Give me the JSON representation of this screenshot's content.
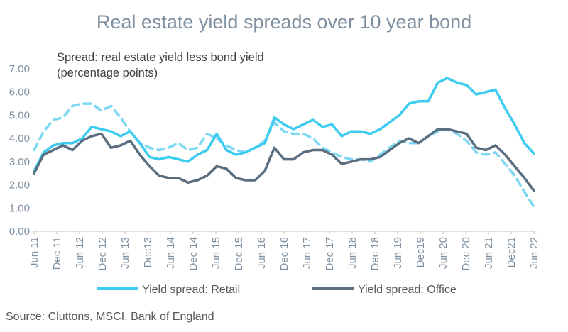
{
  "chart_data": {
    "type": "line",
    "title": "Real estate yield spreads over 10 year bond",
    "ylabel": "Spread: real estate yield less bond yield (percentage points)",
    "ylim": [
      0,
      7
    ],
    "yticks": [
      "0.00",
      "1.00",
      "2.00",
      "3.00",
      "4.00",
      "5.00",
      "6.00",
      "7.00"
    ],
    "xticks": [
      "Jun 11",
      "Dec 11",
      "Jun 12",
      "Dec 12",
      "Jun 13",
      "Dec13",
      "Jun 14",
      "Dec 14",
      "Jun 15",
      "Dec 15",
      "Jun 16",
      "Dec 16",
      "Jun 17",
      "Dec 17",
      "Jun 18",
      "Dec 18",
      "Jun 19",
      "Dec19",
      "Jun 20",
      "Dec 20",
      "Jun 21",
      "Dec21",
      "Jun 22"
    ],
    "source": "Source: Cluttons, MSCI, Bank of England",
    "series": [
      {
        "name": "Yield spread: Retail",
        "color": "#3ecbf0",
        "dash": "solid",
        "legend": true,
        "values": [
          2.6,
          3.4,
          3.7,
          3.8,
          3.8,
          4.0,
          4.5,
          4.4,
          4.3,
          4.1,
          4.3,
          3.8,
          3.2,
          3.1,
          3.2,
          3.1,
          3.0,
          3.3,
          3.5,
          4.2,
          3.5,
          3.3,
          3.4,
          3.6,
          3.8,
          4.9,
          4.6,
          4.4,
          4.6,
          4.8,
          4.5,
          4.6,
          4.1,
          4.3,
          4.3,
          4.2,
          4.4,
          4.7,
          5.0,
          5.5,
          5.6,
          5.6,
          6.4,
          6.6,
          6.4,
          6.3,
          5.9,
          6.0,
          6.1,
          5.3,
          4.6,
          3.8,
          3.35
        ]
      },
      {
        "name": "Yield spread: Office",
        "color": "#5a6e80",
        "dash": "solid",
        "legend": true,
        "values": [
          2.5,
          3.3,
          3.5,
          3.7,
          3.5,
          3.9,
          4.1,
          4.2,
          3.6,
          3.7,
          3.9,
          3.3,
          2.8,
          2.4,
          2.3,
          2.3,
          2.1,
          2.2,
          2.4,
          2.8,
          2.7,
          2.3,
          2.2,
          2.2,
          2.6,
          3.6,
          3.1,
          3.1,
          3.4,
          3.5,
          3.5,
          3.3,
          2.9,
          3.0,
          3.1,
          3.1,
          3.2,
          3.5,
          3.8,
          4.0,
          3.8,
          4.1,
          4.4,
          4.4,
          4.3,
          4.2,
          3.6,
          3.5,
          3.7,
          3.3,
          2.8,
          2.3,
          1.75
        ]
      },
      {
        "name": "",
        "color": "#7dd8f3",
        "dash": "dashed",
        "legend": false,
        "values": [
          3.5,
          4.3,
          4.8,
          4.9,
          5.4,
          5.5,
          5.5,
          5.2,
          5.4,
          4.9,
          4.3,
          3.8,
          3.6,
          3.5,
          3.6,
          3.8,
          3.5,
          3.6,
          4.2,
          4.0,
          3.7,
          3.5,
          3.4,
          3.6,
          3.9,
          4.7,
          4.3,
          4.2,
          4.2,
          4.0,
          3.6,
          3.4,
          3.2,
          3.1,
          3.1,
          3.0,
          3.3,
          3.6,
          3.9,
          3.8,
          3.8,
          4.1,
          4.3,
          4.4,
          4.2,
          3.9,
          3.4,
          3.3,
          3.4,
          2.9,
          2.4,
          1.7,
          1.05
        ]
      }
    ]
  }
}
